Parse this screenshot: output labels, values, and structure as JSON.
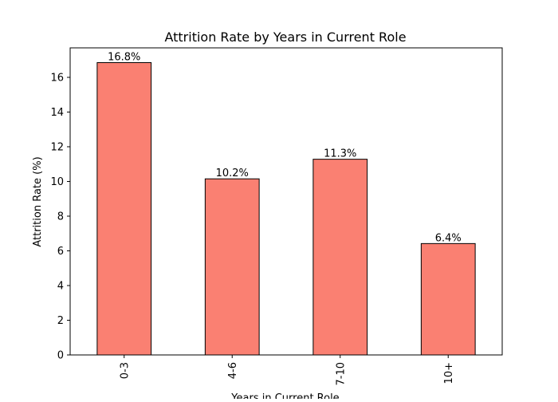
{
  "chart_data": {
    "type": "bar",
    "title": "Attrition Rate by Years in Current Role",
    "xlabel": "Years in Current Role",
    "ylabel": "Attrition Rate (%)",
    "categories": [
      "0-3",
      "4-6",
      "7-10",
      "10+"
    ],
    "values": [
      16.85,
      10.15,
      11.28,
      6.42
    ],
    "data_labels": [
      "16.8%",
      "10.2%",
      "11.3%",
      "6.4%"
    ],
    "ylim": [
      0,
      17.7
    ],
    "yticks": [
      0,
      2,
      4,
      6,
      8,
      10,
      12,
      14,
      16
    ],
    "ytick_labels": [
      "0",
      "2",
      "4",
      "6",
      "8",
      "10",
      "12",
      "14",
      "16"
    ],
    "grid": false,
    "legend": "none",
    "colors": {
      "bar_fill": "#FA8072",
      "bar_edge": "#000000"
    }
  }
}
